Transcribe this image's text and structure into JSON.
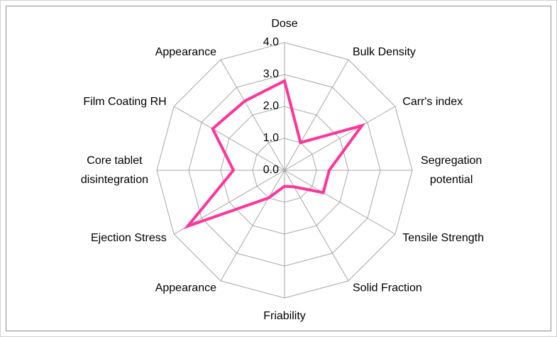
{
  "chart_data": {
    "type": "radar",
    "categories": [
      "Dose",
      "Bulk Density",
      "Carr's index",
      "Segregation potential",
      "Tensile Strength",
      "Solid Fraction",
      "Friability",
      "Appearance",
      "Ejection Stress",
      "Core tablet disintegration",
      "Film Coating RH",
      "Appearance"
    ],
    "series": [
      {
        "color": "#ff3399",
        "values": [
          2.8,
          1.0,
          2.8,
          1.4,
          1.4,
          0.6,
          0.5,
          1.0,
          3.5,
          1.6,
          2.6,
          2.5
        ]
      }
    ],
    "ylim": [
      0,
      4
    ],
    "yticks": [
      {
        "value": 0,
        "label": "0.0"
      },
      {
        "value": 1,
        "label": "1.0"
      },
      {
        "value": 2,
        "label": "2.0"
      },
      {
        "value": 3,
        "label": "3.0"
      },
      {
        "value": 4,
        "label": "4.0"
      }
    ],
    "grid": true
  }
}
